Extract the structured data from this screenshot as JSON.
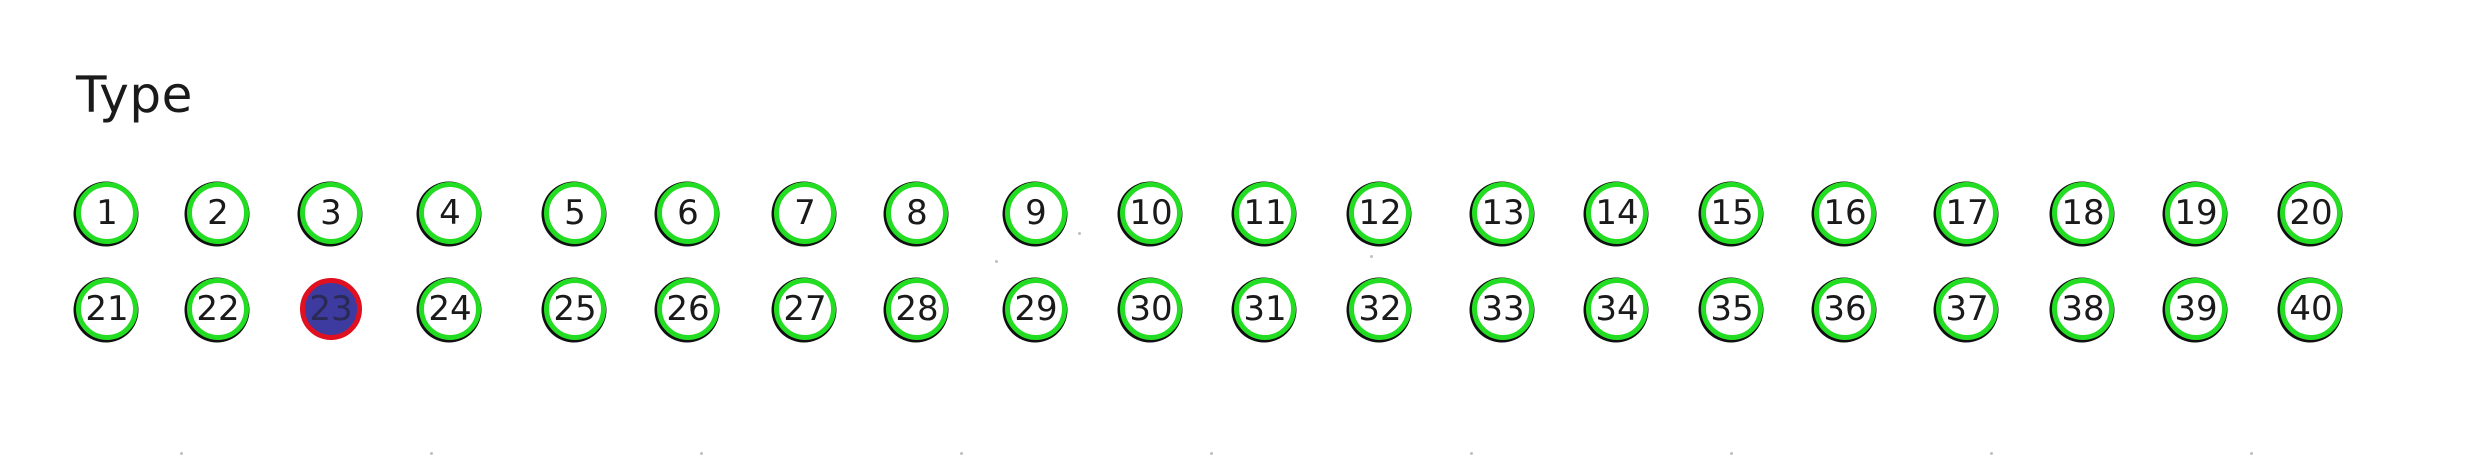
{
  "section": {
    "title": "Type"
  },
  "bubbles": [
    "1",
    "2",
    "3",
    "4",
    "5",
    "6",
    "7",
    "8",
    "9",
    "10",
    "11",
    "12",
    "13",
    "14",
    "15",
    "16",
    "17",
    "18",
    "19",
    "20",
    "21",
    "22",
    "23",
    "24",
    "25",
    "26",
    "27",
    "28",
    "29",
    "30",
    "31",
    "32",
    "33",
    "34",
    "35",
    "36",
    "37",
    "38",
    "39",
    "40"
  ],
  "selected": "23",
  "colors": {
    "ring": "#22dd22",
    "ring_shadow": "#111111",
    "selected_fill": "#3d3aa0",
    "selected_ring": "#e01020",
    "text": "#1a1a1a"
  }
}
